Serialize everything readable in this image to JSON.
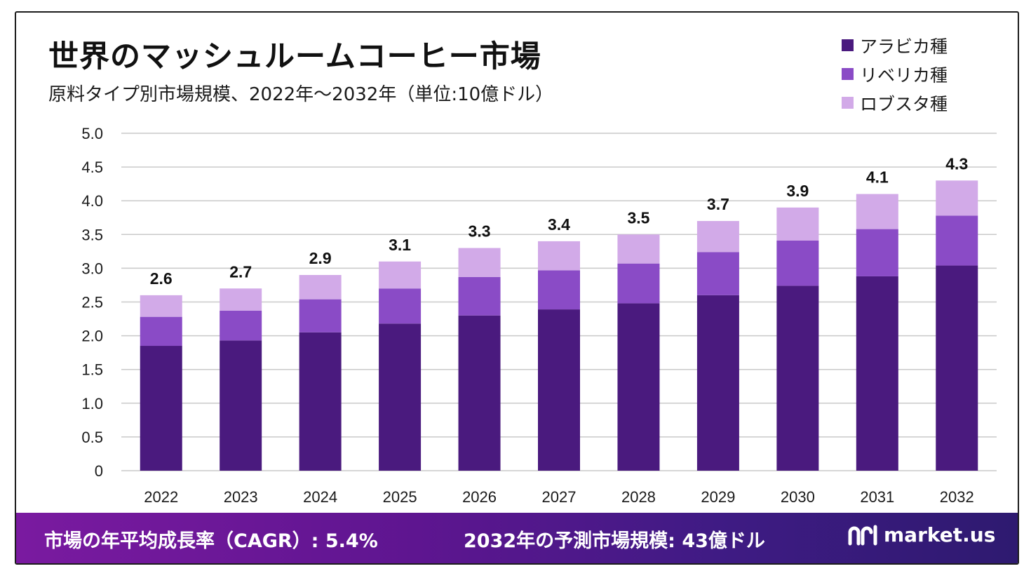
{
  "chart_data": {
    "type": "bar",
    "stacked": true,
    "title": "世界のマッシュルームコーヒー市場",
    "subtitle": "原料タイプ別市場規模、2022年〜2032年（単位:10億ドル）",
    "categories": [
      "2022",
      "2023",
      "2024",
      "2025",
      "2026",
      "2027",
      "2028",
      "2029",
      "2030",
      "2031",
      "2032"
    ],
    "series": [
      {
        "name": "アラビカ種",
        "color": "#4a1a7e",
        "values": [
          1.85,
          1.93,
          2.05,
          2.18,
          2.3,
          2.39,
          2.48,
          2.6,
          2.74,
          2.88,
          3.04
        ]
      },
      {
        "name": "リベリカ種",
        "color": "#8a4bc6",
        "values": [
          0.43,
          0.44,
          0.49,
          0.52,
          0.57,
          0.58,
          0.59,
          0.64,
          0.67,
          0.7,
          0.74
        ]
      },
      {
        "name": "ロブスタ種",
        "color": "#d2aae8",
        "values": [
          0.32,
          0.33,
          0.36,
          0.4,
          0.43,
          0.43,
          0.43,
          0.46,
          0.49,
          0.52,
          0.52
        ]
      }
    ],
    "totals": [
      "2.6",
      "2.7",
      "2.9",
      "3.1",
      "3.3",
      "3.4",
      "3.5",
      "3.7",
      "3.9",
      "4.1",
      "4.3"
    ],
    "totals_values": [
      2.6,
      2.7,
      2.9,
      3.1,
      3.3,
      3.4,
      3.5,
      3.7,
      3.9,
      4.1,
      4.3
    ],
    "ylim": [
      0,
      5.0
    ],
    "yticks": [
      "5.0",
      "4.5",
      "4.0",
      "3.5",
      "3.0",
      "2.5",
      "2.0",
      "1.5",
      "1.0",
      "0.5",
      "0"
    ],
    "ytick_values": [
      5.0,
      4.5,
      4.0,
      3.5,
      3.0,
      2.5,
      2.0,
      1.5,
      1.0,
      0.5,
      0
    ],
    "xlabel": "",
    "ylabel": "",
    "grid": true,
    "legend_position": "top-right"
  },
  "footer": {
    "cagr": "市場の年平均成長率（CAGR）: 5.4%",
    "forecast": "2032年の予測市場規模: 43億ドル",
    "brand": "market.us"
  },
  "colors": {
    "accent_dark": "#4a1a7e",
    "accent_mid": "#8a4bc6",
    "accent_light": "#d2aae8"
  }
}
